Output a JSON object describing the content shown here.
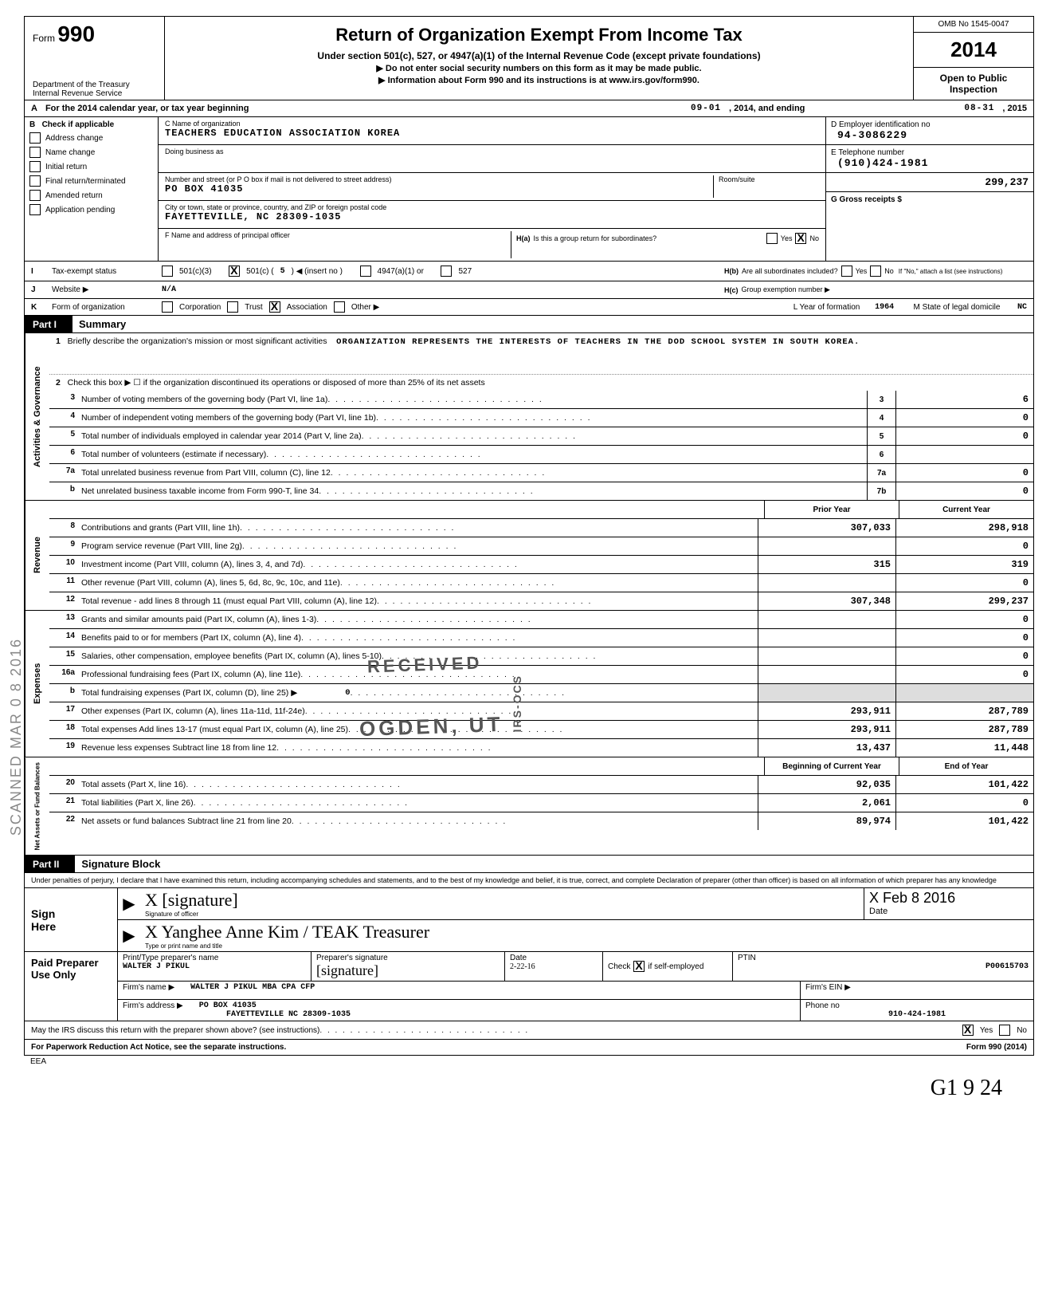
{
  "header": {
    "form_label": "Form",
    "form_number": "990",
    "title": "Return of Organization Exempt From Income Tax",
    "subtitle1": "Under section 501(c), 527, or 4947(a)(1) of the Internal Revenue Code (except private foundations)",
    "subtitle2a": "▶ Do not enter social security numbers on this form as it may be made public.",
    "subtitle2b": "▶ Information about Form 990 and its instructions is at www.irs.gov/form990.",
    "dept1": "Department of the Treasury",
    "dept2": "Internal Revenue Service",
    "omb": "OMB No 1545-0047",
    "year": "2014",
    "open1": "Open to Public",
    "open2": "Inspection"
  },
  "row_a": {
    "lead": "A",
    "text_a": "For the 2014 calendar year, or tax year beginning",
    "begin": "09-01",
    "mid": ", 2014, and ending",
    "end": "08-31",
    "tail": ", 2015"
  },
  "col_b": {
    "lead": "B",
    "head": "Check if applicable",
    "items": [
      "Address change",
      "Name change",
      "Initial return",
      "Final return/terminated",
      "Amended return",
      "Application pending"
    ]
  },
  "col_c": {
    "c_lbl": "C  Name of organization",
    "c_val": "TEACHERS EDUCATION ASSOCIATION KOREA",
    "dba_lbl": "Doing business as",
    "street_lbl": "Number and street (or P O  box if mail is not delivered to street address)",
    "street_val": "PO BOX 41035",
    "room_lbl": "Room/suite",
    "city_lbl": "City or town, state or province, country, and ZIP or foreign postal code",
    "city_val": "FAYETTEVILLE, NC 28309-1035",
    "f_lbl": "F  Name and address of principal officer"
  },
  "col_de": {
    "d_lbl": "D  Employer identification no",
    "d_val": "94-3086229",
    "e_lbl": "E  Telephone number",
    "e_val": "(910)424-1981",
    "g_lbl": "G  Gross receipts $",
    "g_val": "299,237"
  },
  "h_block": {
    "ha_lbl": "H(a)",
    "ha_text": "Is this a group return for subordinates?",
    "hb_lbl": "H(b)",
    "hb_text": "Are all subordinates included?",
    "hb_note": "If \"No,\" attach a list  (see instructions)",
    "hc_lbl": "H(c)",
    "hc_text": "Group exemption number  ▶",
    "yes": "Yes",
    "no": "No"
  },
  "row_i": {
    "lead": "I",
    "lbl": "Tax-exempt status",
    "c3": "501(c)(3)",
    "c_insert": "501(c) (",
    "c_num": "5",
    "c_tail": ")  ◀ (insert no )",
    "a1": "4947(a)(1) or",
    "s527": "527"
  },
  "row_j": {
    "lead": "J",
    "lbl": "Website  ▶",
    "val": "N/A"
  },
  "row_k": {
    "lead": "K",
    "lbl": "Form of organization",
    "opts": [
      "Corporation",
      "Trust",
      "Association",
      "Other ▶"
    ],
    "yr_lbl": "L  Year of formation",
    "yr_val": "1964",
    "st_lbl": "M  State of legal domicile",
    "st_val": "NC"
  },
  "part1": {
    "tag": "Part I",
    "title": "Summary",
    "gov_label": "Activities & Governance",
    "rev_label": "Revenue",
    "exp_label": "Expenses",
    "net_label": "Net Assets or Fund Balances",
    "line1_lbl": "Briefly describe the organization's mission or most significant activities",
    "line1_val": "ORGANIZATION REPRESENTS THE INTERESTS OF TEACHERS IN THE DOD SCHOOL SYSTEM IN SOUTH KOREA.",
    "line2": "Check this box ▶ ☐ if the organization discontinued its operations or disposed of more than 25% of its net assets",
    "lines_gov": [
      {
        "n": "3",
        "t": "Number of voting members of the governing body (Part VI, line 1a)",
        "b": "3",
        "v": "6"
      },
      {
        "n": "4",
        "t": "Number of independent voting members of the governing body (Part VI, line 1b)",
        "b": "4",
        "v": "0"
      },
      {
        "n": "5",
        "t": "Total number of individuals employed in calendar year 2014 (Part V, line 2a)",
        "b": "5",
        "v": "0"
      },
      {
        "n": "6",
        "t": "Total number of volunteers (estimate if necessary)",
        "b": "6",
        "v": ""
      },
      {
        "n": "7a",
        "t": "Total unrelated business revenue from Part VIII, column (C), line 12",
        "b": "7a",
        "v": "0"
      },
      {
        "n": "b",
        "t": "Net unrelated business taxable income from Form 990-T, line 34",
        "b": "7b",
        "v": "0"
      }
    ],
    "hdr_prior": "Prior Year",
    "hdr_curr": "Current Year",
    "lines_rev": [
      {
        "n": "8",
        "t": "Contributions and grants (Part VIII, line 1h)",
        "p": "307,033",
        "c": "298,918"
      },
      {
        "n": "9",
        "t": "Program service revenue (Part VIII, line 2g)",
        "p": "",
        "c": "0"
      },
      {
        "n": "10",
        "t": "Investment income (Part VIII, column (A), lines 3, 4, and 7d)",
        "p": "315",
        "c": "319"
      },
      {
        "n": "11",
        "t": "Other revenue (Part VIII, column (A), lines 5, 6d, 8c, 9c, 10c, and 11e)",
        "p": "",
        "c": "0"
      },
      {
        "n": "12",
        "t": "Total revenue - add lines 8 through 11 (must equal Part VIII, column (A), line 12)",
        "p": "307,348",
        "c": "299,237"
      }
    ],
    "lines_exp": [
      {
        "n": "13",
        "t": "Grants and similar amounts paid (Part IX, column (A), lines 1-3)",
        "p": "",
        "c": "0"
      },
      {
        "n": "14",
        "t": "Benefits paid to or for members (Part IX, column (A), line 4)",
        "p": "",
        "c": "0"
      },
      {
        "n": "15",
        "t": "Salaries, other compensation, employee benefits (Part IX, column (A), lines 5-10)",
        "p": "",
        "c": "0"
      },
      {
        "n": "16a",
        "t": "Professional fundraising fees (Part IX, column (A), line 11e)",
        "p": "",
        "c": "0",
        "gray_p": false
      },
      {
        "n": "b",
        "t": "Total fundraising expenses (Part IX, column (D), line 25)  ▶",
        "p": "",
        "c": "",
        "inline_zero": "0",
        "gray": true
      },
      {
        "n": "17",
        "t": "Other expenses (Part IX, column (A), lines 11a-11d, 11f-24e)",
        "p": "293,911",
        "c": "287,789"
      },
      {
        "n": "18",
        "t": "Total expenses  Add lines 13-17 (must equal Part IX, column (A), line 25)",
        "p": "293,911",
        "c": "287,789"
      },
      {
        "n": "19",
        "t": "Revenue less expenses  Subtract line 18 from line 12",
        "p": "13,437",
        "c": "11,448"
      }
    ],
    "hdr_beg": "Beginning of Current Year",
    "hdr_end": "End of Year",
    "lines_net": [
      {
        "n": "20",
        "t": "Total assets (Part X, line 16)",
        "p": "92,035",
        "c": "101,422"
      },
      {
        "n": "21",
        "t": "Total liabilities (Part X, line 26)",
        "p": "2,061",
        "c": "0"
      },
      {
        "n": "22",
        "t": "Net assets or fund balances  Subtract line 21 from line 20",
        "p": "89,974",
        "c": "101,422"
      }
    ]
  },
  "stamps": {
    "received": "RECEIVED",
    "ogden": "OGDEN, UT",
    "irs_ocs": "IRS-OCS",
    "scanned": "SCANNED MAR 0 8 2016"
  },
  "part2": {
    "tag": "Part II",
    "title": "Signature Block",
    "decl": "Under penalties of perjury, I declare that I have examined this return, including accompanying schedules and statements, and to the best of my knowledge and belief, it is true, correct, and complete  Declaration of preparer (other than officer) is based on all information of which preparer has any knowledge"
  },
  "sign": {
    "left1": "Sign",
    "left2": "Here",
    "sig_lbl": "Signature of officer",
    "sig_hand": "X   [signature]",
    "date_lbl": "Date",
    "date_hand": "X  Feb 8 2016",
    "name_lbl": "Type or print name and title",
    "name_hand": "X  Yanghee  Anne  Kim    /   TEAK Treasurer"
  },
  "prep": {
    "left": "Paid Preparer Use Only",
    "r1_lbl1": "Print/Type preparer's name",
    "r1_val1": "WALTER J PIKUL",
    "r1_lbl2": "Preparer's signature",
    "r1_lbl3": "Date",
    "r1_date": "2-22-16",
    "r1_chk": "Check",
    "r1_if": "if self-employed",
    "r1_ptin_lbl": "PTIN",
    "r1_ptin": "P00615703",
    "r2_lbl": "Firm's name    ▶",
    "r2_val": "WALTER J PIKUL MBA CPA CFP",
    "r2_ein_lbl": "Firm's EIN  ▶",
    "r3_lbl": "Firm's address ▶",
    "r3_val1": "PO BOX 41035",
    "r3_val2": "FAYETTEVILLE NC 28309-1035",
    "r3_ph_lbl": "Phone no",
    "r3_ph": "910-424-1981"
  },
  "footer": {
    "q": "May the IRS discuss this return with the preparer shown above? (see instructions)",
    "yes": "Yes",
    "no": "No",
    "note": "For Paperwork Reduction Act Notice, see the separate instructions.",
    "eea": "EEA",
    "form": "Form 990 (2014)",
    "hand": "G1 9  24"
  }
}
